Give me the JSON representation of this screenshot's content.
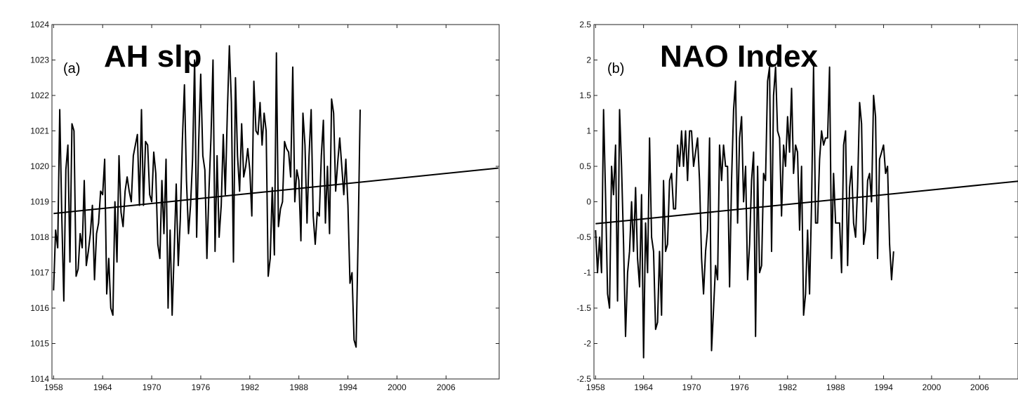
{
  "chart_data": [
    {
      "type": "line",
      "panel": "(a)",
      "title": "AH slp",
      "xlim": [
        1957.8,
        2012.5
      ],
      "ylim": [
        1014,
        1024
      ],
      "xticks": [
        1958,
        1964,
        1970,
        1976,
        1982,
        1988,
        1994,
        2000,
        2006
      ],
      "yticks": [
        1014,
        1015,
        1016,
        1017,
        1018,
        1019,
        1020,
        1021,
        1022,
        1023,
        1024
      ],
      "ytick_labels": [
        "1014",
        "1015",
        "1016",
        "1017",
        "1018",
        "1019",
        "1020",
        "1021",
        "1022",
        "1023",
        "1024"
      ],
      "grid": false,
      "series": [
        {
          "x_start": 1958,
          "x_step": 0.25,
          "values": [
            1016.5,
            1018.2,
            1017.7,
            1021.6,
            1018.6,
            1016.2,
            1019.9,
            1020.6,
            1017.3,
            1021.2,
            1021.0,
            1016.9,
            1017.1,
            1018.1,
            1017.7,
            1019.6,
            1017.2,
            1017.6,
            1018.1,
            1018.9,
            1016.8,
            1018.1,
            1018.4,
            1019.3,
            1019.2,
            1020.2,
            1016.4,
            1017.4,
            1016.0,
            1015.8,
            1019.0,
            1017.3,
            1020.3,
            1018.7,
            1018.3,
            1019.3,
            1019.7,
            1019.3,
            1019.0,
            1020.3,
            1020.6,
            1020.9,
            1018.9,
            1021.6,
            1018.9,
            1020.7,
            1020.6,
            1019.2,
            1019.0,
            1020.4,
            1019.8,
            1017.8,
            1017.4,
            1019.6,
            1018.1,
            1020.2,
            1016.0,
            1018.2,
            1015.8,
            1017.6,
            1019.5,
            1017.2,
            1018.5,
            1020.7,
            1022.3,
            1019.6,
            1018.1,
            1018.9,
            1020.2,
            1023.0,
            1018.0,
            1020.7,
            1022.6,
            1020.3,
            1019.9,
            1017.4,
            1019.3,
            1020.8,
            1023.0,
            1017.6,
            1020.3,
            1018.0,
            1018.9,
            1020.9,
            1019.2,
            1021.5,
            1023.4,
            1021.8,
            1017.3,
            1022.5,
            1020.3,
            1019.3,
            1021.2,
            1019.7,
            1020.0,
            1020.5,
            1019.9,
            1018.6,
            1022.4,
            1021.0,
            1020.9,
            1021.8,
            1020.6,
            1021.5,
            1021.0,
            1016.9,
            1017.4,
            1019.4,
            1017.5,
            1023.2,
            1018.3,
            1018.8,
            1019.0,
            1020.7,
            1020.5,
            1020.4,
            1019.7,
            1022.8,
            1019.0,
            1019.9,
            1019.6,
            1017.9,
            1021.5,
            1020.6,
            1018.4,
            1020.3,
            1021.6,
            1018.6,
            1017.8,
            1018.7,
            1018.6,
            1020.3,
            1021.3,
            1018.4,
            1020.0,
            1018.1,
            1021.9,
            1021.5,
            1019.3,
            1020.1,
            1020.8,
            1020.0,
            1019.2,
            1020.2,
            1018.9,
            1016.7,
            1017.0,
            1015.1,
            1014.9,
            1018.0,
            1021.6
          ]
        },
        {
          "name": "",
          "kind": "linear-trend",
          "x": [
            1958,
            2012.4
          ],
          "y": [
            1018.67,
            1019.95
          ]
        }
      ]
    },
    {
      "type": "line",
      "panel": "(b)",
      "title": "NAO Index",
      "xlim": [
        1957.8,
        2010.8
      ],
      "ylim": [
        -2.5,
        2.5
      ],
      "xticks": [
        1958,
        1964,
        1970,
        1976,
        1982,
        1988,
        1994,
        2000,
        2006
      ],
      "yticks": [
        -2.5,
        -2,
        -1.5,
        -1,
        -0.5,
        0,
        0.5,
        1,
        1.5,
        2,
        2.5
      ],
      "ytick_labels": [
        "-2.5",
        "-2",
        "-1.5",
        "-1",
        "-0.5",
        "0",
        "0.5",
        "1",
        "1.5",
        "2",
        "2.5"
      ],
      "grid": false,
      "series": [
        {
          "x_start": 1958,
          "x_step": 0.25,
          "values": [
            -0.4,
            -1.0,
            -0.5,
            -1.0,
            1.3,
            0.1,
            -1.3,
            -1.5,
            0.5,
            0.1,
            0.8,
            -1.4,
            1.3,
            0.5,
            -0.6,
            -1.9,
            -1.0,
            -0.7,
            0.0,
            -0.7,
            0.2,
            -0.8,
            -1.2,
            0.1,
            -2.2,
            -0.3,
            -1.0,
            0.9,
            -0.5,
            -0.7,
            -1.8,
            -1.7,
            -0.7,
            -1.6,
            0.3,
            -0.7,
            -0.6,
            0.3,
            0.4,
            -0.1,
            -0.1,
            0.8,
            0.5,
            1.0,
            0.5,
            1.0,
            0.3,
            1.0,
            1.0,
            0.5,
            0.7,
            0.9,
            0.3,
            -0.8,
            -1.3,
            -0.7,
            -0.4,
            0.9,
            -2.1,
            -1.5,
            -0.9,
            -1.1,
            0.8,
            0.3,
            0.8,
            0.5,
            0.5,
            -1.2,
            0.3,
            1.3,
            1.7,
            -0.3,
            0.9,
            1.2,
            0.0,
            0.5,
            -1.1,
            -0.6,
            0.3,
            0.7,
            -1.9,
            0.5,
            -1.0,
            -0.9,
            0.4,
            0.3,
            1.7,
            1.9,
            -0.7,
            1.5,
            1.9,
            1.0,
            0.9,
            -0.2,
            0.8,
            0.5,
            1.2,
            0.7,
            1.6,
            0.4,
            0.8,
            0.7,
            -0.4,
            0.5,
            -1.6,
            -1.3,
            -0.4,
            -1.3,
            0.0,
            1.9,
            -0.3,
            -0.3,
            0.6,
            1.0,
            0.8,
            0.9,
            0.9,
            1.9,
            -0.8,
            0.4,
            -0.3,
            -0.3,
            -0.3,
            -1.0,
            0.8,
            1.0,
            -0.9,
            0.2,
            0.5,
            -0.3,
            -0.5,
            0.2,
            1.4,
            1.1,
            -0.6,
            -0.4,
            0.3,
            0.4,
            0.0,
            1.5,
            1.2,
            -0.8,
            0.6,
            0.7,
            0.8,
            0.4,
            0.5,
            -0.6,
            -1.1,
            -0.7
          ]
        },
        {
          "name": "",
          "kind": "linear-trend",
          "x": [
            1958,
            2010.8
          ],
          "y": [
            -0.31,
            0.29
          ]
        }
      ]
    }
  ]
}
